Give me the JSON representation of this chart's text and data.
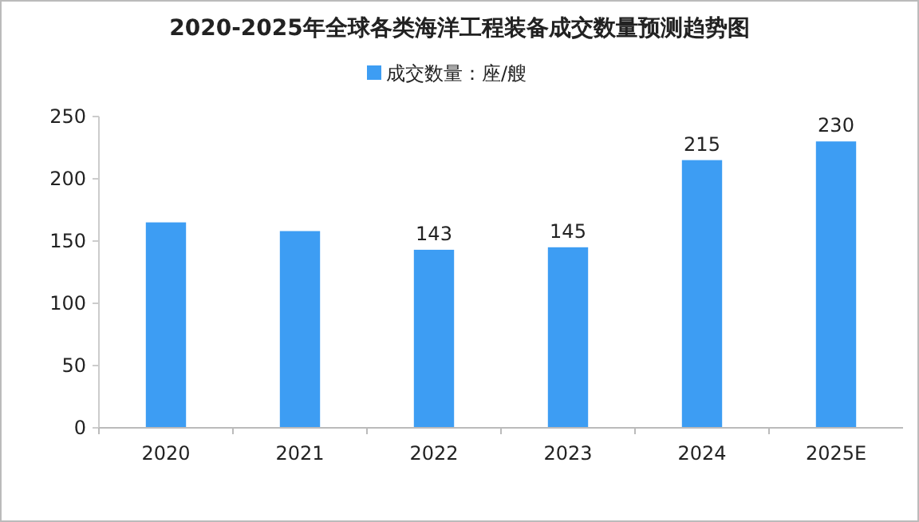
{
  "chart_data": {
    "type": "bar",
    "title": "2020-2025年全球各类海洋工程装备成交数量预测趋势图",
    "categories": [
      "2020",
      "2021",
      "2022",
      "2023",
      "2024",
      "2025E"
    ],
    "series": [
      {
        "name": "成交数量：座/艘",
        "color": "#3d9df3",
        "values": [
          165,
          158,
          143,
          145,
          215,
          230
        ],
        "value_labels": [
          null,
          null,
          "143",
          "145",
          "215",
          "230"
        ]
      }
    ],
    "ylim": [
      0,
      250
    ],
    "yticks": [
      0,
      50,
      100,
      150,
      200,
      250
    ],
    "grid": false,
    "legend": "top"
  }
}
